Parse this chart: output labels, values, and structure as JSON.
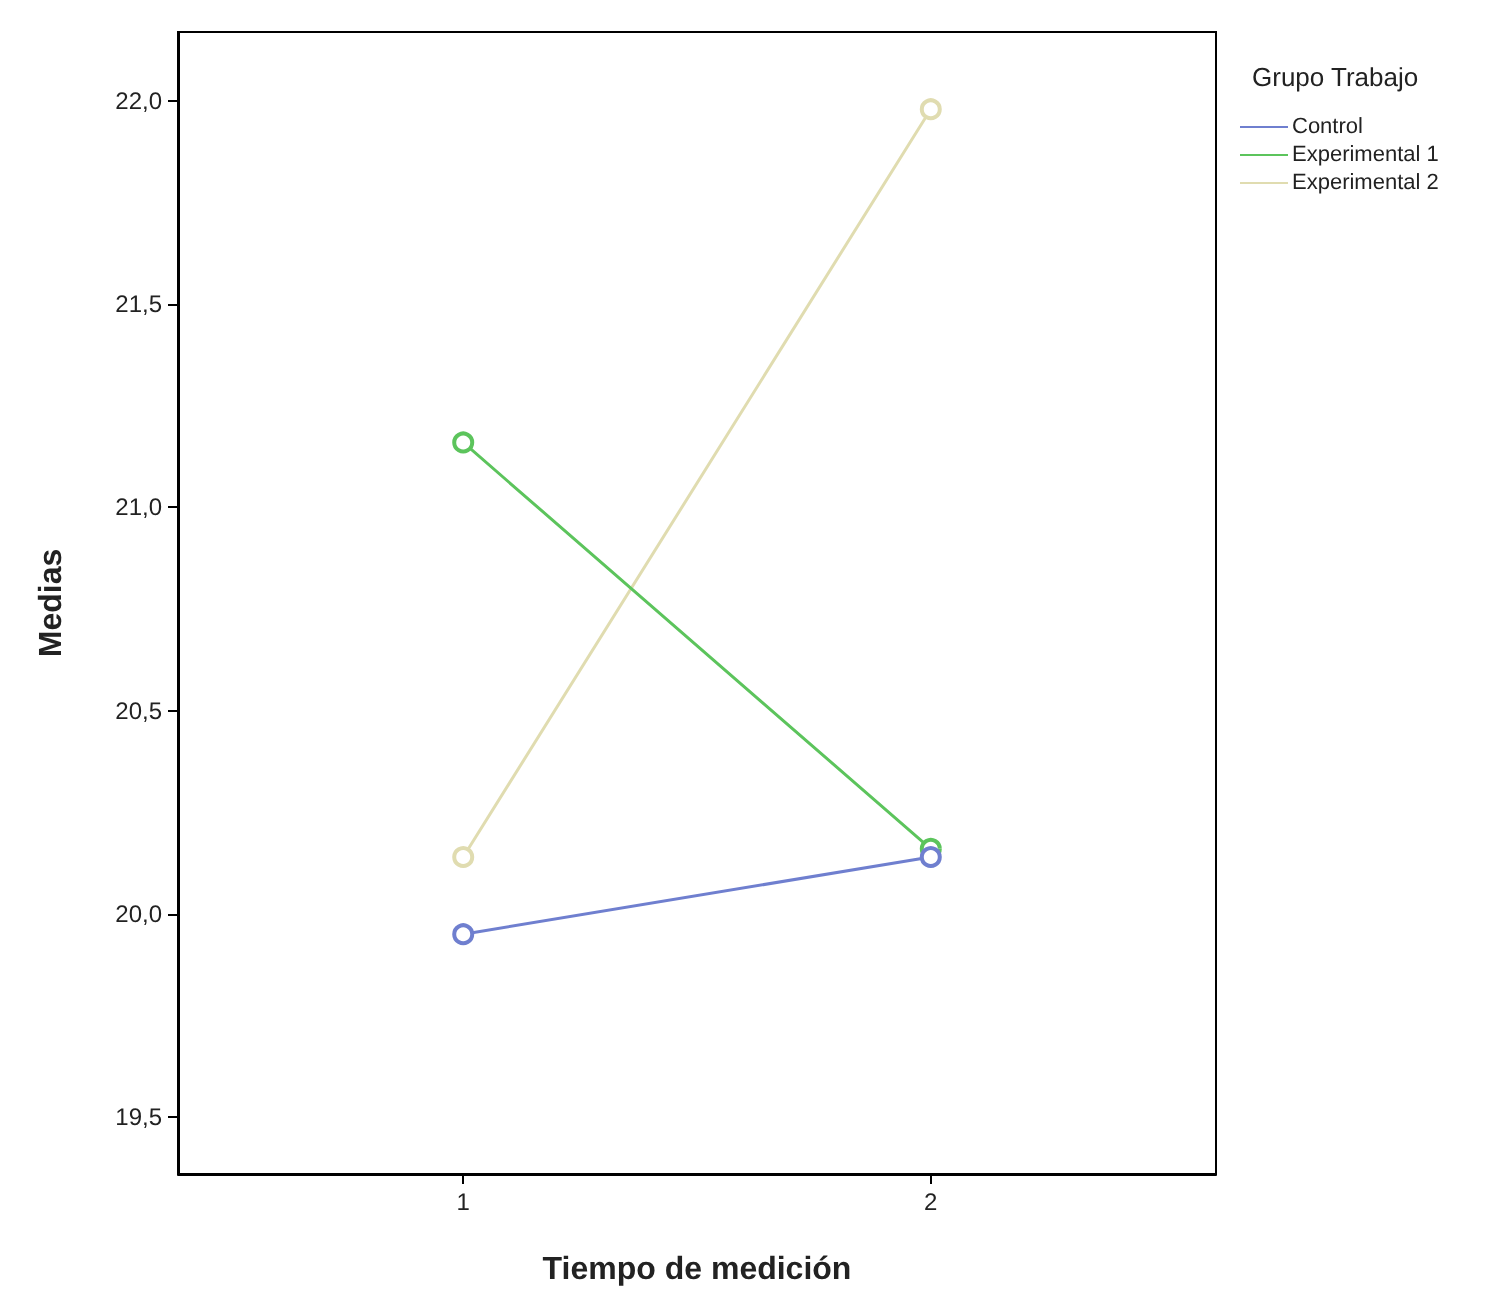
{
  "chart_data": {
    "type": "line",
    "xlabel": "Tiempo de medición",
    "ylabel": "Medias",
    "legend_title": "Grupo Trabajo",
    "x": [
      1,
      2
    ],
    "xlim": [
      0.39,
      2.61
    ],
    "xticks": [
      1,
      2
    ],
    "ylim": [
      19.36,
      22.17
    ],
    "yticks": [
      {
        "value": 19.5,
        "label": "19,5"
      },
      {
        "value": 20,
        "label": "20,0"
      },
      {
        "value": 20.5,
        "label": "20,5"
      },
      {
        "value": 21,
        "label": "21,0"
      },
      {
        "value": 21.5,
        "label": "21,5"
      },
      {
        "value": 22,
        "label": "22,0"
      }
    ],
    "series": [
      {
        "name": "Control",
        "color": "#6f7fcf",
        "values": [
          19.95,
          20.14
        ]
      },
      {
        "name": "Experimental 1",
        "color": "#5cc45c",
        "values": [
          21.16,
          20.16
        ]
      },
      {
        "name": "Experimental 2",
        "color": "#e0dcb0",
        "values": [
          20.14,
          21.98
        ]
      }
    ],
    "grid": false,
    "legend": "top right",
    "marker": "circle",
    "line_style": "solid"
  }
}
